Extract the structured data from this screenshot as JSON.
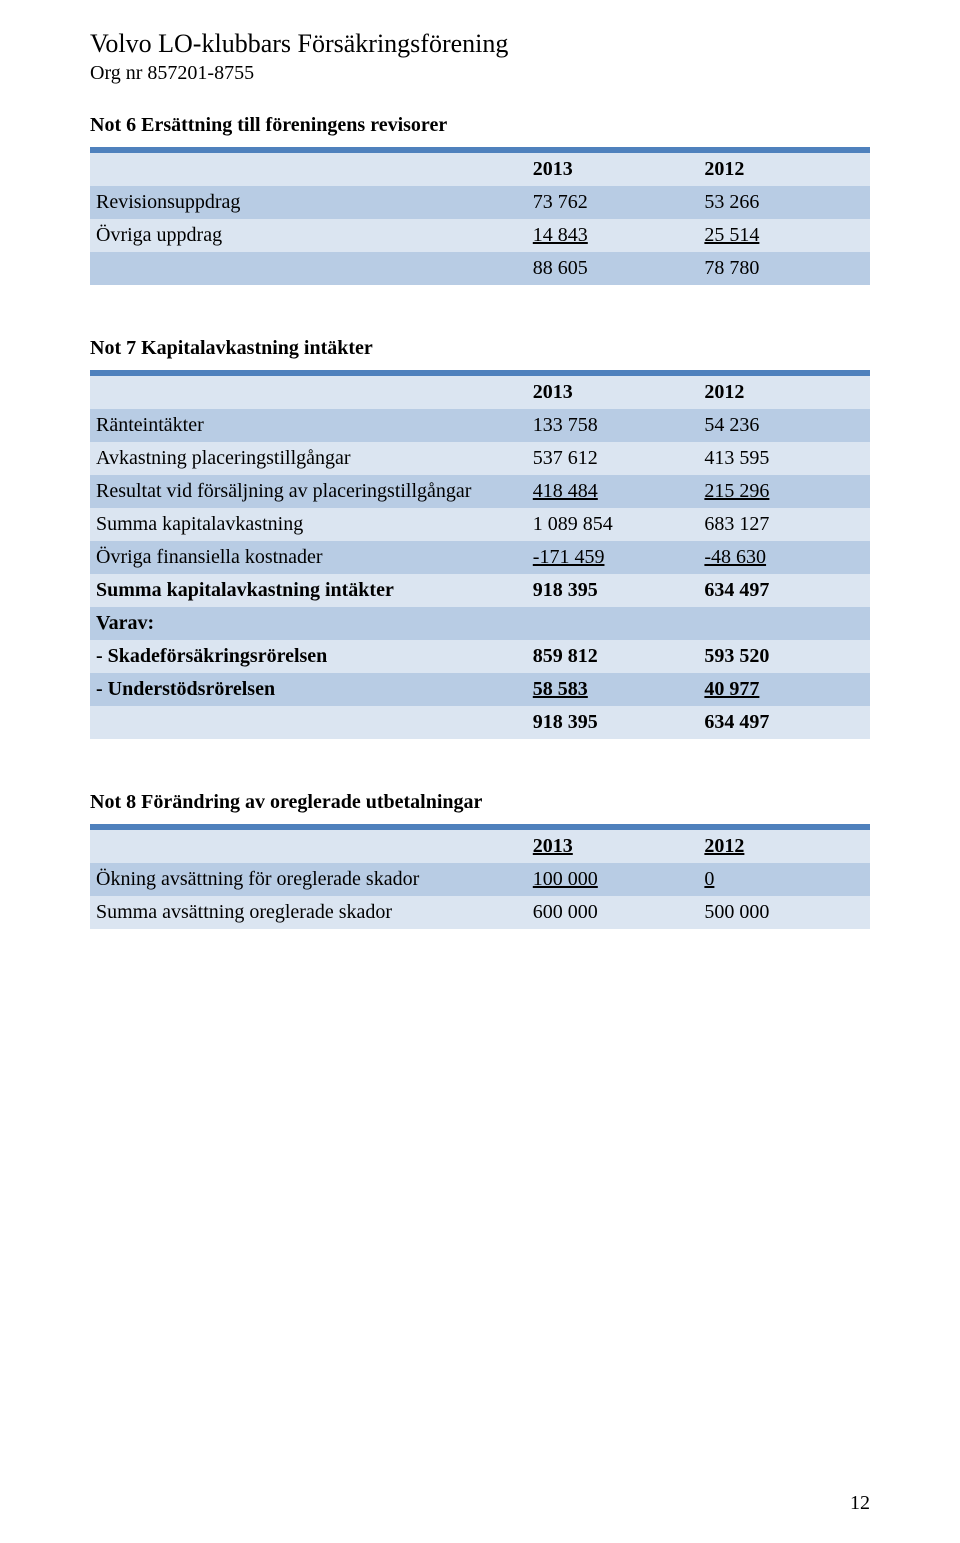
{
  "colors": {
    "header_row_bg": "#4f81bd",
    "row_medium_bg": "#b8cce4",
    "row_light_bg": "#dbe5f1",
    "page_bg": "#ffffff",
    "text": "#000000"
  },
  "fonts": {
    "family": "Times New Roman",
    "title_size_pt": 18,
    "body_size_pt": 14
  },
  "header": {
    "org_name": "Volvo LO-klubbars Försäkringsförening",
    "org_nr": "Org nr 857201-8755"
  },
  "page_number": "12",
  "not6": {
    "heading": "Not 6 Ersättning till föreningens revisorer",
    "year_cols": [
      "2013",
      "2012"
    ],
    "rows": [
      {
        "label": "Revisionsuppdrag",
        "v2013": "73 762",
        "v2012": "53 266",
        "shade": "med"
      },
      {
        "label": "Övriga uppdrag",
        "v2013": "14 843",
        "v2012": "25 514",
        "shade": "light",
        "underline": true
      },
      {
        "label": "",
        "v2013": "88 605",
        "v2012": "78 780",
        "shade": "med"
      }
    ]
  },
  "not7": {
    "heading": "Not 7 Kapitalavkastning intäkter",
    "year_cols": [
      "2013",
      "2012"
    ],
    "rows": [
      {
        "label": "Ränteintäkter",
        "v2013": "133 758",
        "v2012": "54 236",
        "shade": "med"
      },
      {
        "label": "Avkastning placeringstillgångar",
        "v2013": "537 612",
        "v2012": "413 595",
        "shade": "light"
      },
      {
        "label": "Resultat vid försäljning av placeringstillgångar",
        "v2013": "418 484",
        "v2012": "215 296",
        "shade": "med",
        "underline": true
      },
      {
        "label": "Summa kapitalavkastning",
        "v2013": "1 089 854",
        "v2012": "683 127",
        "shade": "light"
      },
      {
        "label": "Övriga finansiella kostnader",
        "v2013": "-171 459",
        "v2012": "-48 630",
        "shade": "med",
        "underline": true
      },
      {
        "label": "Summa kapitalavkastning intäkter",
        "v2013": "918 395",
        "v2012": "634 497",
        "shade": "light",
        "bold": true
      },
      {
        "label": "Varav:",
        "v2013": "",
        "v2012": "",
        "shade": "med",
        "bold": true
      },
      {
        "label": "- Skadeförsäkringsrörelsen",
        "v2013": "859 812",
        "v2012": "593 520",
        "shade": "light",
        "bold": true
      },
      {
        "label": "- Understödsrörelsen",
        "v2013": "58 583",
        "v2012": "40 977",
        "shade": "med",
        "bold": true,
        "underline": true
      },
      {
        "label": "",
        "v2013": "918 395",
        "v2012": "634 497",
        "shade": "light",
        "bold": true
      }
    ]
  },
  "not8": {
    "heading": "Not 8 Förändring av oreglerade utbetalningar",
    "year_cols": [
      "2013",
      "2012"
    ],
    "rows": [
      {
        "label": "Ökning avsättning för oreglerade skador",
        "v2013": "100 000",
        "v2012": "0",
        "shade": "med",
        "underline": true
      },
      {
        "label": "Summa avsättning oreglerade skador",
        "v2013": "600 000",
        "v2012": "500 000",
        "shade": "light"
      }
    ]
  }
}
